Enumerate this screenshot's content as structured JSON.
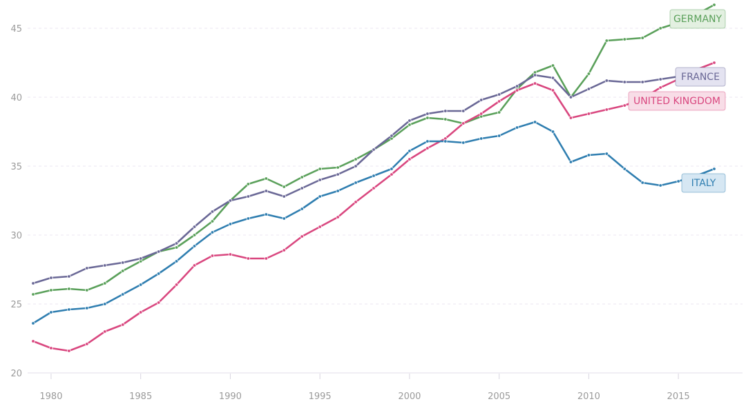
{
  "chart_data": {
    "type": "line",
    "title": "",
    "xlabel": "",
    "ylabel": "",
    "xlim": [
      1979,
      2017
    ],
    "ylim": [
      20,
      47
    ],
    "x_ticks": [
      "1980",
      "1985",
      "1990",
      "1995",
      "2000",
      "2005",
      "2010",
      "2015"
    ],
    "y_ticks": [
      "20",
      "25",
      "30",
      "35",
      "40",
      "45"
    ],
    "grid": "horizontal dashed",
    "legend": "direct labels at line ends",
    "x": [
      1979,
      1980,
      1981,
      1982,
      1983,
      1984,
      1985,
      1986,
      1987,
      1988,
      1989,
      1990,
      1991,
      1992,
      1993,
      1994,
      1995,
      1996,
      1997,
      1998,
      1999,
      2000,
      2001,
      2002,
      2003,
      2004,
      2005,
      2006,
      2007,
      2008,
      2009,
      2010,
      2011,
      2012,
      2013,
      2014,
      2015,
      2016,
      2017
    ],
    "series": [
      {
        "name": "GERMANY",
        "color": "#5aa05a",
        "label_bg": "#e3f0e1",
        "values": [
          25.7,
          26.0,
          26.1,
          26.0,
          26.5,
          27.4,
          28.1,
          28.8,
          29.1,
          30.0,
          31.0,
          32.5,
          33.7,
          34.1,
          33.5,
          34.2,
          34.8,
          34.9,
          35.5,
          36.2,
          37.0,
          38.0,
          38.5,
          38.4,
          38.1,
          38.6,
          38.9,
          40.6,
          41.8,
          42.3,
          40.0,
          41.7,
          44.1,
          44.2,
          44.3,
          45.0,
          45.4,
          46.0,
          46.7
        ]
      },
      {
        "name": "FRANCE",
        "color": "#6a6896",
        "label_bg": "#e4e3f1",
        "values": [
          26.5,
          26.9,
          27.0,
          27.6,
          27.8,
          28.0,
          28.3,
          28.8,
          29.4,
          30.6,
          31.7,
          32.5,
          32.8,
          33.2,
          32.8,
          33.4,
          34.0,
          34.4,
          35.0,
          36.2,
          37.2,
          38.3,
          38.8,
          39.0,
          39.0,
          39.8,
          40.2,
          40.8,
          41.6,
          41.4,
          40.0,
          40.6,
          41.2,
          41.1,
          41.1,
          41.3,
          41.5,
          41.7,
          41.9
        ]
      },
      {
        "name": "UNITED KINGDOM",
        "color": "#d9477f",
        "label_bg": "#f8dde7",
        "values": [
          22.3,
          21.8,
          21.6,
          22.1,
          23.0,
          23.5,
          24.4,
          25.1,
          26.4,
          27.8,
          28.5,
          28.6,
          28.3,
          28.3,
          28.9,
          29.9,
          30.6,
          31.3,
          32.4,
          33.4,
          34.4,
          35.5,
          36.3,
          37.0,
          38.1,
          38.8,
          39.7,
          40.5,
          41.0,
          40.5,
          38.5,
          38.8,
          39.1,
          39.4,
          39.9,
          40.7,
          41.3,
          42.0,
          42.5
        ]
      },
      {
        "name": "ITALY",
        "color": "#2f7eb0",
        "label_bg": "#d6e7f3",
        "values": [
          23.6,
          24.4,
          24.6,
          24.7,
          25.0,
          25.7,
          26.4,
          27.2,
          28.1,
          29.2,
          30.2,
          30.8,
          31.2,
          31.5,
          31.2,
          31.9,
          32.8,
          33.2,
          33.8,
          34.3,
          34.8,
          36.1,
          36.8,
          36.8,
          36.7,
          37.0,
          37.2,
          37.8,
          38.2,
          37.5,
          35.3,
          35.8,
          35.9,
          34.8,
          33.8,
          33.6,
          33.9,
          34.3,
          34.8
        ]
      }
    ]
  }
}
